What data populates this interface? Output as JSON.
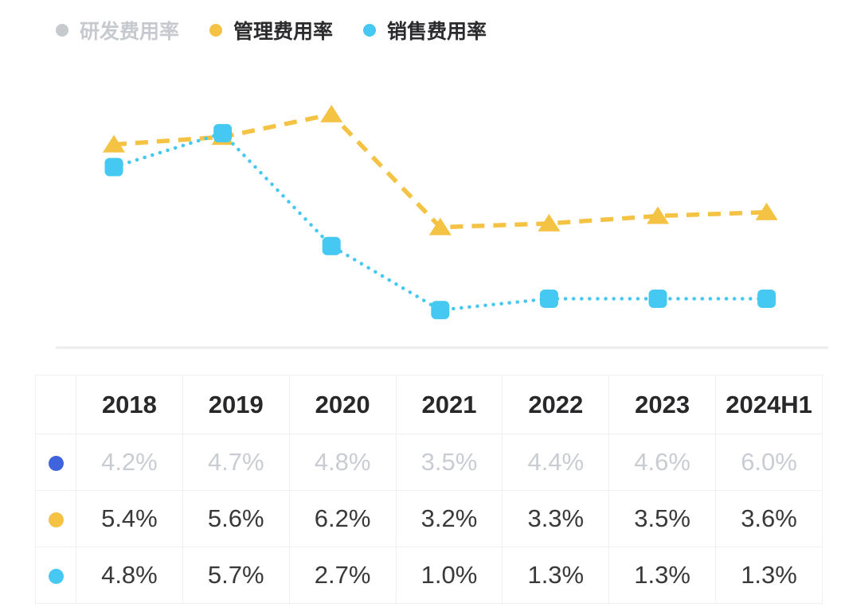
{
  "legend": {
    "items": [
      {
        "label": "研发费用率",
        "color": "#c6c9cd",
        "inactive": true
      },
      {
        "label": "管理费用率",
        "color": "#f5c344",
        "inactive": false
      },
      {
        "label": "销售费用率",
        "color": "#45c8f1",
        "inactive": false
      }
    ]
  },
  "chart_data": {
    "type": "line",
    "categories": [
      "2018",
      "2019",
      "2020",
      "2021",
      "2022",
      "2023",
      "2024H1"
    ],
    "series": [
      {
        "name": "研发费用率",
        "values": [
          4.2,
          4.7,
          4.8,
          3.5,
          4.4,
          4.6,
          6.0
        ],
        "color": "#3e63dd",
        "visible": false,
        "marker": "circle",
        "line_style": "solid"
      },
      {
        "name": "管理费用率",
        "values": [
          5.4,
          5.6,
          6.2,
          3.2,
          3.3,
          3.5,
          3.6
        ],
        "color": "#f5c344",
        "visible": true,
        "marker": "triangle",
        "line_style": "dashed"
      },
      {
        "name": "销售费用率",
        "values": [
          4.8,
          5.7,
          2.7,
          1.0,
          1.3,
          1.3,
          1.3
        ],
        "color": "#45c8f1",
        "visible": true,
        "marker": "square",
        "line_style": "dotted"
      }
    ],
    "ylabel": "",
    "xlabel": "",
    "ylim": [
      0,
      7.5
    ],
    "grid": false,
    "baseline_value": 0,
    "baseline_color": "#ececef",
    "legend_position": "top"
  },
  "table": {
    "columns": [
      "2018",
      "2019",
      "2020",
      "2021",
      "2022",
      "2023",
      "2024H1"
    ],
    "rows": [
      {
        "series": "研发费用率",
        "dot_color": "#3e63dd",
        "muted": true,
        "values": [
          "4.2%",
          "4.7%",
          "4.8%",
          "3.5%",
          "4.4%",
          "4.6%",
          "6.0%"
        ]
      },
      {
        "series": "管理费用率",
        "dot_color": "#f5c344",
        "muted": false,
        "values": [
          "5.4%",
          "5.6%",
          "6.2%",
          "3.2%",
          "3.3%",
          "3.5%",
          "3.6%"
        ]
      },
      {
        "series": "销售费用率",
        "dot_color": "#45c8f1",
        "muted": false,
        "values": [
          "4.8%",
          "5.7%",
          "2.7%",
          "1.0%",
          "1.3%",
          "1.3%",
          "1.3%"
        ]
      }
    ]
  }
}
